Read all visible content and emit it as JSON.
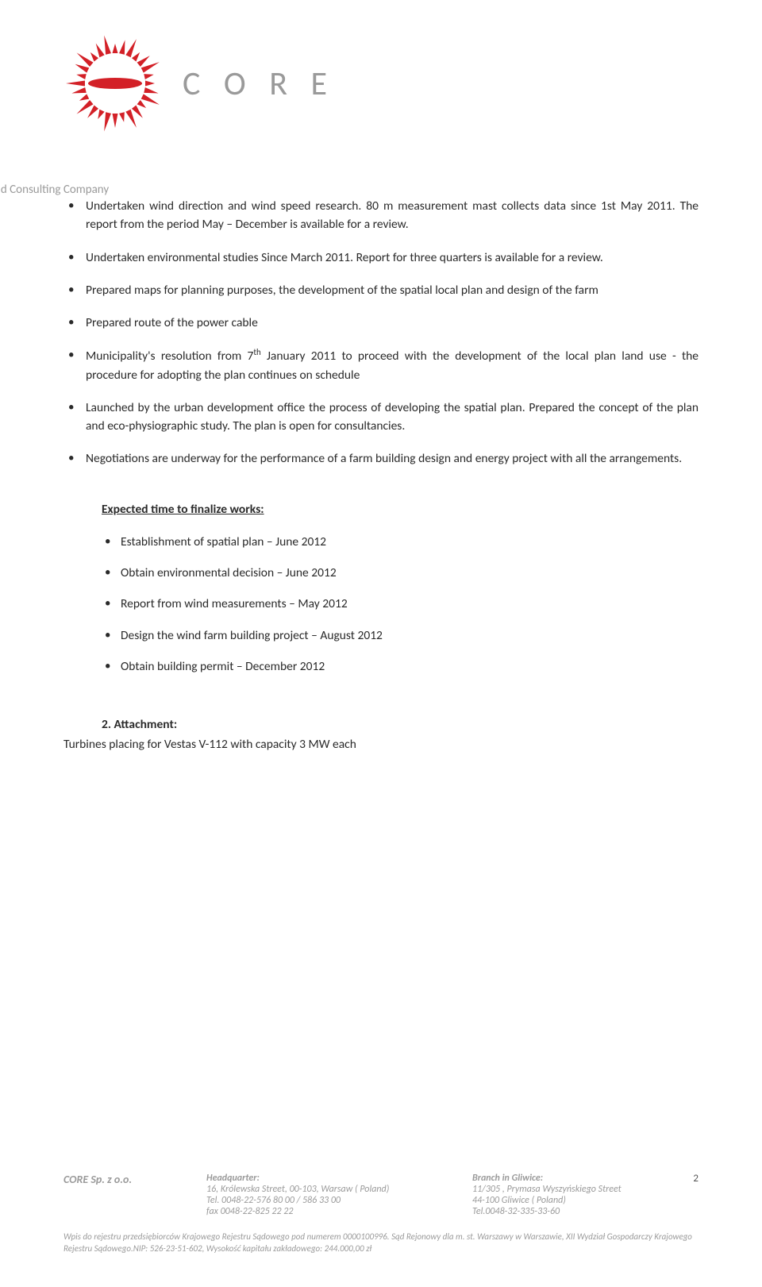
{
  "logo": {
    "brand": "C O R E",
    "tagline": "Business and Consulting Company",
    "primary_color": "#d32027",
    "secondary_color": "#9a9a9a"
  },
  "bullets": [
    "Undertaken wind direction and wind speed research. 80 m measurement mast collects data since 1st May 2011. The report from the period May – December is available for a review.",
    "Undertaken environmental studies Since March 2011. Report for three quarters is available for a review.",
    "Prepared maps for planning purposes, the development of the spatial local plan and design of the farm",
    "Prepared route of the power cable",
    "Municipality's resolution from 7th January 2011 to proceed with the development of the local plan land use - the procedure for adopting the plan continues on schedule",
    "Launched by the urban development office the process of developing the spatial plan. Prepared the concept of the plan and eco-physiographic study. The plan is open for consultancies.",
    "Negotiations are underway for the performance of a farm building design and energy project with all the arrangements."
  ],
  "expected_title": "Expected time to finalize works:",
  "expected_items": [
    "Establishment of spatial plan – June 2012",
    "Obtain environmental decision – June 2012",
    "Report from wind measurements – May 2012",
    "Design the wind farm building project – August 2012",
    "Obtain building permit – December 2012"
  ],
  "attachment": {
    "number_title": "2.   Attachment:",
    "text": "Turbines placing for Vestas V-112 with capacity 3 MW each"
  },
  "footer": {
    "company": "CORE Sp. z o.o.",
    "hq_title": "Headquarter:",
    "hq_lines": [
      "16, Królewska Street, 00-103, Warsaw ( Poland)",
      "Tel. 0048-22-576 80 00 / 586 33 00",
      "fax 0048-22-825 22 22"
    ],
    "branch_title": "Branch in Gliwice:",
    "branch_lines": [
      "11/305 , Prymasa Wyszyńskiego Street",
      "44-100 Gliwice ( Poland)",
      "Tel.0048-32-335-33-60"
    ],
    "page_number": "2",
    "legal": "Wpis do rejestru przedsiębiorców Krajowego Rejestru Sądowego pod numerem 0000100996. Sąd Rejonowy dla m. st. Warszawy w Warszawie, XII Wydział Gospodarczy Krajowego Rejestru Sądowego.NIP: 526-23-51-602, Wysokość kapitału zakładowego: 244.000,00 zł"
  }
}
